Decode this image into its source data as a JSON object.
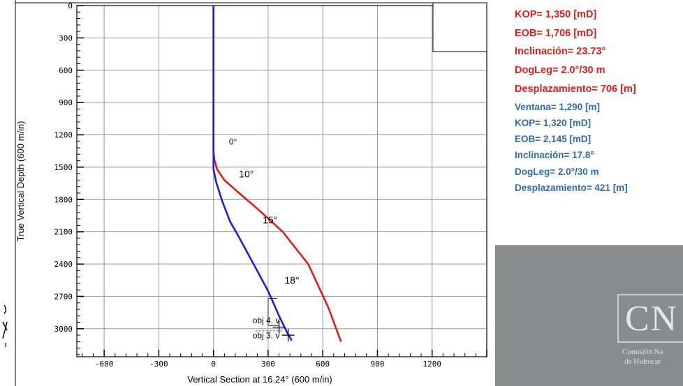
{
  "chart_data": {
    "type": "line",
    "xlabel": "Vertical Section at 16.24° (600 m/in)",
    "ylabel": "True Vertical Depth (600 m/in)",
    "xlim": [
      -750,
      1500
    ],
    "ylim": [
      3260,
      0
    ],
    "x_ticks": [
      "-600",
      "-300",
      "0",
      "300",
      "600",
      "900",
      "1200"
    ],
    "x_tick_values": [
      -600,
      -300,
      0,
      300,
      600,
      900,
      1200
    ],
    "y_ticks": [
      "0",
      "300",
      "600",
      "900",
      "1200",
      "1500",
      "1800",
      "2100",
      "2400",
      "2700",
      "3000"
    ],
    "y_tick_values": [
      0,
      300,
      600,
      900,
      1200,
      1500,
      1800,
      2100,
      2400,
      2700,
      3000
    ],
    "grid": true,
    "series": [
      {
        "color": "#e51b1b",
        "points": [
          [
            0,
            0
          ],
          [
            0,
            1350
          ],
          [
            5,
            1430
          ],
          [
            20,
            1520
          ],
          [
            60,
            1620
          ],
          [
            140,
            1740
          ],
          [
            250,
            1900
          ],
          [
            380,
            2100
          ],
          [
            520,
            2400
          ],
          [
            630,
            2800
          ],
          [
            700,
            3120
          ]
        ]
      },
      {
        "color": "#1f1fe0",
        "points": [
          [
            0,
            0
          ],
          [
            0,
            1520
          ],
          [
            15,
            1640
          ],
          [
            45,
            1800
          ],
          [
            90,
            2000
          ],
          [
            140,
            2150
          ],
          [
            220,
            2400
          ],
          [
            300,
            2650
          ],
          [
            360,
            2880
          ],
          [
            400,
            3020
          ],
          [
            430,
            3110
          ]
        ]
      }
    ],
    "annotations": [
      {
        "text": "0°",
        "x": 85,
        "y": 1290
      },
      {
        "text": "10°",
        "x": 140,
        "y": 1595
      },
      {
        "text": "15°",
        "x": 270,
        "y": 2020
      },
      {
        "text": "18°",
        "x": 390,
        "y": 2580
      },
      {
        "text": "obj 4. v",
        "x": 215,
        "y": 2950
      },
      {
        "text": "obj 3. v",
        "x": 215,
        "y": 3090
      }
    ]
  },
  "params": {
    "red": [
      "KOP= 1,350 [mD]",
      "EOB= 1,706 [mD]",
      "Inclinación= 23.73°",
      "DogLeg= 2.0°/30 m",
      "Desplazamiento= 706 [m]"
    ],
    "blue": [
      "Ventana= 1,290 [m]",
      "KOP= 1,320 [mD]",
      "EOB= 2,145 [mD]",
      "Inclinación= 17.8°",
      "DogLeg= 2.0°/30 m",
      "Desplazamiento= 421 [m]"
    ]
  },
  "logo": {
    "mark": "CN",
    "caption_line1": "Comisión Na",
    "caption_line2": "de Hidrocar"
  },
  "colors": {
    "red_text": "#e51b1b",
    "blue_text": "#2e6bb3",
    "logo_bg": "#8a8b8d"
  }
}
